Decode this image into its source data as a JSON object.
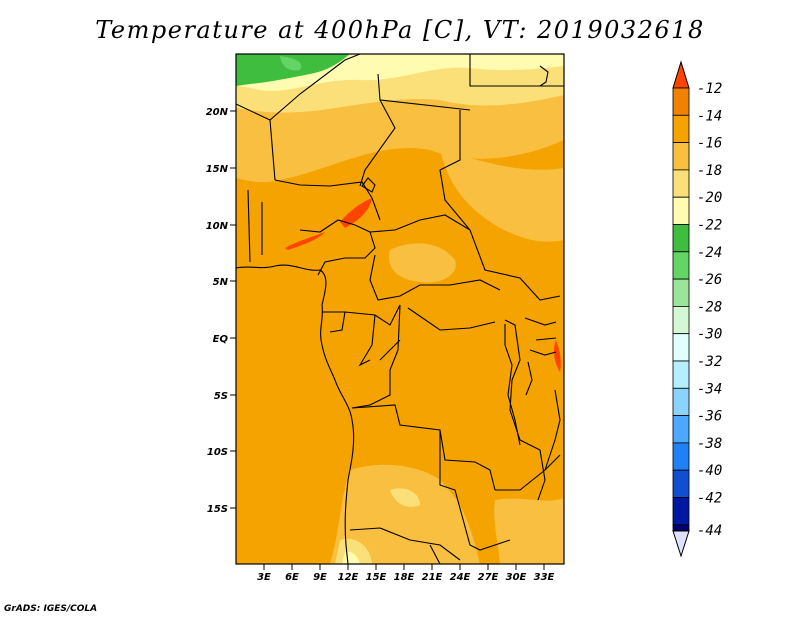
{
  "title": "Temperature at 400hPa [C], VT: 2019032618",
  "credit": "GrADS: IGES/COLA",
  "map": {
    "lat_labels": [
      "20N",
      "15N",
      "10N",
      "5N",
      "EQ",
      "5S",
      "10S",
      "15S"
    ],
    "lon_labels": [
      "3E",
      "6E",
      "9E",
      "12E",
      "15E",
      "18E",
      "21E",
      "24E",
      "27E",
      "30E",
      "33E"
    ],
    "dominant_field_color": "#f5a300"
  },
  "colorbar": {
    "labels": [
      "-12",
      "-14",
      "-16",
      "-18",
      "-20",
      "-22",
      "-24",
      "-26",
      "-28",
      "-30",
      "-32",
      "-34",
      "-36",
      "-38",
      "-40",
      "-42",
      "-44"
    ],
    "colors": [
      "#ff4400",
      "#f08200",
      "#f5a300",
      "#f8bf40",
      "#fbe07a",
      "#fffbb0",
      "#3ebd3e",
      "#64d464",
      "#9ae59a",
      "#d3f8d3",
      "#e1ffff",
      "#b4eeff",
      "#8cd2ff",
      "#4ea8ff",
      "#2080f5",
      "#1050d0",
      "#0018a0",
      "#000070",
      "#e0e0ff"
    ]
  }
}
